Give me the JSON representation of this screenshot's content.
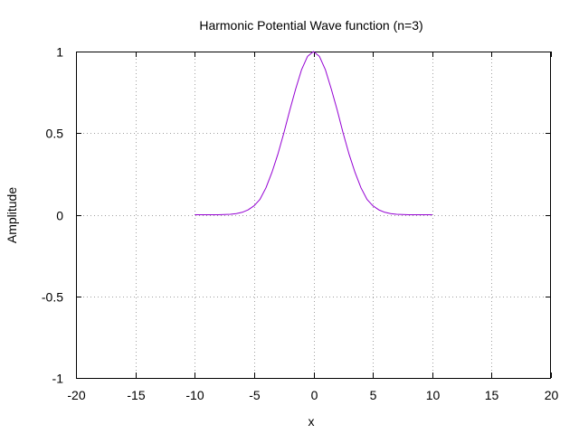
{
  "chart_data": {
    "type": "line",
    "title": "Harmonic Potential Wave function (n=3)",
    "xlabel": "x",
    "ylabel": "Amplitude",
    "xlim": [
      -20,
      20
    ],
    "ylim": [
      -1,
      1
    ],
    "x_ticks": [
      "-20",
      "-15",
      "-10",
      "-5",
      "0",
      "5",
      "10",
      "15",
      "20"
    ],
    "y_ticks": [
      "-1",
      "-0.5",
      "0",
      "0.5",
      "1"
    ],
    "grid": true,
    "legend": "none",
    "colors": {
      "series": "#9400d3",
      "grid": "#a0a0a0",
      "frame": "#000000"
    },
    "series": [
      {
        "x": [
          -10,
          -9,
          -8,
          -7,
          -6.5,
          -6,
          -5.5,
          -5,
          -4.5,
          -4,
          -3.5,
          -3,
          -2.5,
          -2,
          -1.5,
          -1,
          -0.5,
          0,
          0.5,
          1,
          1.5,
          2,
          2.5,
          3,
          3.5,
          4,
          4.5,
          5,
          5.5,
          6,
          6.5,
          7,
          8,
          9,
          10
        ],
        "y": [
          0.0,
          0.0,
          0.0,
          0.003,
          0.007,
          0.015,
          0.03,
          0.055,
          0.095,
          0.165,
          0.26,
          0.37,
          0.5,
          0.64,
          0.77,
          0.89,
          0.97,
          1.0,
          0.97,
          0.89,
          0.77,
          0.64,
          0.5,
          0.37,
          0.26,
          0.165,
          0.095,
          0.055,
          0.03,
          0.015,
          0.007,
          0.003,
          0.0,
          0.0,
          0.0
        ]
      }
    ]
  }
}
